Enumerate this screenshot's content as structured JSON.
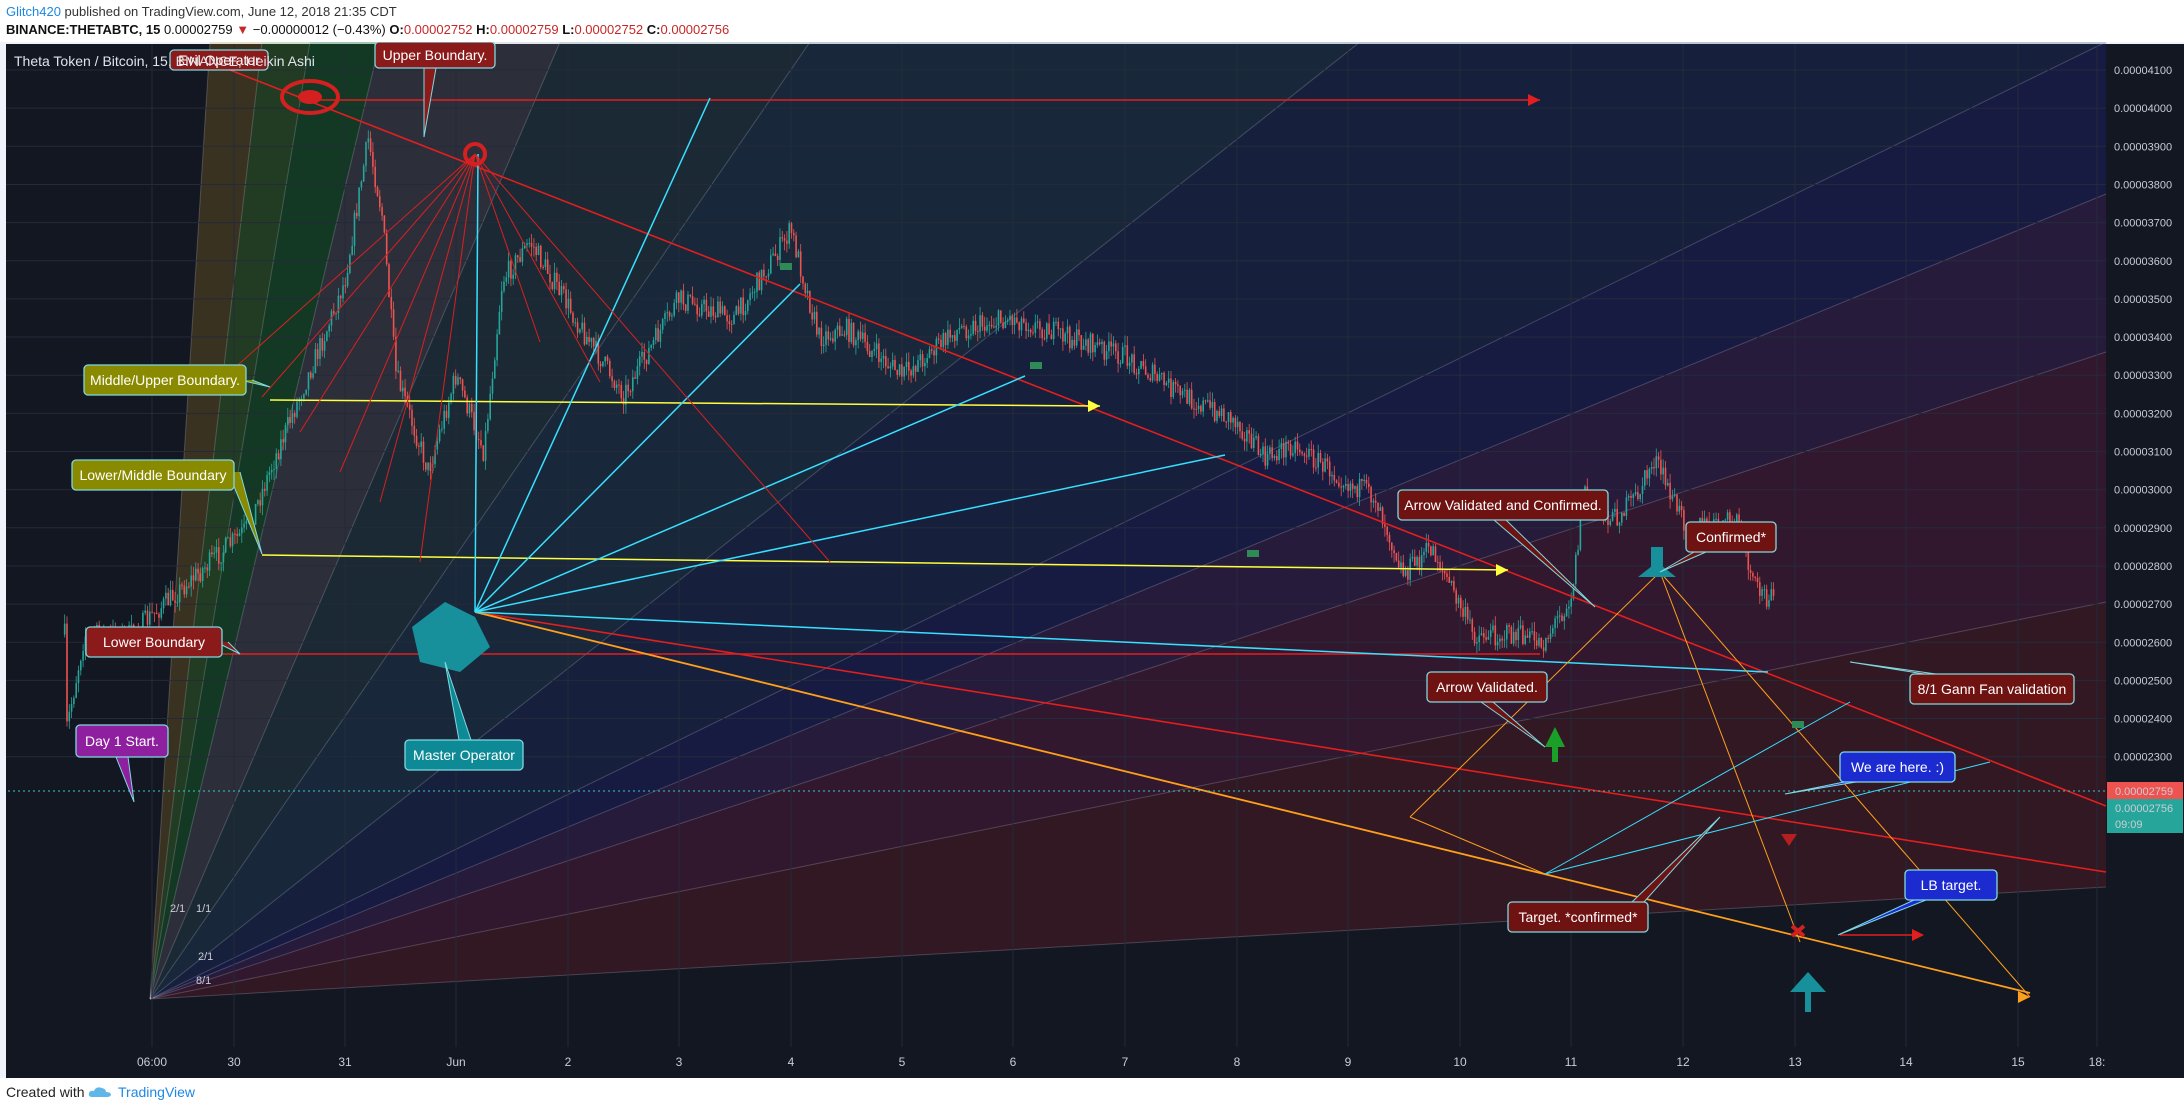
{
  "header": {
    "author": "Glitch420",
    "published": "published on TradingView.com, June 12, 2018 21:35 CDT",
    "symbol": "BINANCE:THETABTC, 15",
    "last": "0.00002759",
    "change_arrow": "▼",
    "change": "−0.00000012 (−0.43%)",
    "o_label": "O:",
    "o_value": "0.00002752",
    "h_label": "H:",
    "h_value": "0.00002759",
    "l_label": "L:",
    "l_value": "0.00002752",
    "c_label": "C:",
    "c_value": "0.00002756"
  },
  "chart_data": {
    "type": "candlestick",
    "title": "Theta Token / Bitcoin, 15, BINANCE, Heikin Ashi",
    "xlabel": "",
    "ylabel": "",
    "ylim": [
      2.25e-05,
      4.18e-05
    ],
    "yticks": [
      "0.00004100",
      "0.00004000",
      "0.00003900",
      "0.00003800",
      "0.00003700",
      "0.00003600",
      "0.00003500",
      "0.00003400",
      "0.00003300",
      "0.00003200",
      "0.00003100",
      "0.00003000",
      "0.00002900",
      "0.00002800",
      "0.00002700",
      "0.00002600",
      "0.00002500",
      "0.00002400",
      "0.00002300"
    ],
    "xticks": [
      "06:00",
      "30",
      "31",
      "Jun",
      "2",
      "3",
      "4",
      "5",
      "6",
      "7",
      "8",
      "9",
      "10",
      "11",
      "12",
      "13",
      "14",
      "15",
      "18:"
    ],
    "price_badges": {
      "last": "0.00002759",
      "close": "0.00002756",
      "timer": "09:09"
    },
    "price_path": [
      [
        "05-29 05:45",
        2.62e-05
      ],
      [
        "05-29 06:00",
        2.36e-05
      ],
      [
        "05-29 10:00",
        2.62e-05
      ],
      [
        "05-29 20:00",
        2.62e-05
      ],
      [
        "05-30 03:00",
        2.9e-05
      ],
      [
        "05-30 10:00",
        3.12e-05
      ],
      [
        "05-30 20:00",
        3.42e-05
      ],
      [
        "05-31 00:00",
        3.55e-05
      ],
      [
        "05-31 05:00",
        3.92e-05
      ],
      [
        "05-31 08:00",
        3.72e-05
      ],
      [
        "05-31 11:00",
        3.3e-05
      ],
      [
        "05-31 18:00",
        3.05e-05
      ],
      [
        "06-01 00:00",
        3.3e-05
      ],
      [
        "06-01 06:00",
        3.1e-05
      ],
      [
        "06-01 10:00",
        3.55e-05
      ],
      [
        "06-01 16:00",
        3.65e-05
      ],
      [
        "06-02 04:00",
        3.4e-05
      ],
      [
        "06-02 12:00",
        3.25e-05
      ],
      [
        "06-03 00:00",
        3.5e-05
      ],
      [
        "06-03 12:00",
        3.45e-05
      ],
      [
        "06-04 00:00",
        3.68e-05
      ],
      [
        "06-04 06:00",
        3.4e-05
      ],
      [
        "06-04 12:00",
        3.42e-05
      ],
      [
        "06-05 00:00",
        3.3e-05
      ],
      [
        "06-05 12:00",
        3.42e-05
      ],
      [
        "06-06 00:00",
        3.45e-05
      ],
      [
        "06-06 12:00",
        3.4e-05
      ],
      [
        "06-07 00:00",
        3.35e-05
      ],
      [
        "06-07 12:00",
        3.25e-05
      ],
      [
        "06-08 00:00",
        3.18e-05
      ],
      [
        "06-08 06:00",
        3.08e-05
      ],
      [
        "06-08 12:00",
        3.12e-05
      ],
      [
        "06-09 00:00",
        3.02e-05
      ],
      [
        "06-09 06:00",
        2.98e-05
      ],
      [
        "06-09 12:00",
        2.78e-05
      ],
      [
        "06-09 18:00",
        2.85e-05
      ],
      [
        "06-10 03:00",
        2.62e-05
      ],
      [
        "06-10 12:00",
        2.62e-05
      ],
      [
        "06-10 18:00",
        2.6e-05
      ],
      [
        "06-11 00:00",
        2.72e-05
      ],
      [
        "06-11 03:00",
        3e-05
      ],
      [
        "06-11 09:00",
        2.92e-05
      ],
      [
        "06-11 14:00",
        2.98e-05
      ],
      [
        "06-11 18:00",
        3.08e-05
      ],
      [
        "06-12 00:00",
        2.92e-05
      ],
      [
        "06-12 06:00",
        2.9e-05
      ],
      [
        "06-12 12:00",
        2.92e-05
      ],
      [
        "06-12 15:00",
        2.75e-05
      ],
      [
        "06-12 18:00",
        2.72e-05
      ],
      [
        "06-12 20:00",
        2.76e-05
      ]
    ]
  },
  "annotations": {
    "callouts": [
      {
        "text": "Evil Operator",
        "color": "#8b1a1a"
      },
      {
        "text": "Upper Boundary.",
        "color": "#8b1a1a"
      },
      {
        "text": "Middle/Upper Boundary.",
        "color": "#8a8a00"
      },
      {
        "text": "Lower/Middle Boundary",
        "color": "#8a8a00"
      },
      {
        "text": "Lower Boundary",
        "color": "#8b1a1a"
      },
      {
        "text": "Day 1 Start.",
        "color": "#8e1f9e"
      },
      {
        "text": "Master Operator",
        "color": "#0e8a96"
      },
      {
        "text": "Arrow Validated and Confirmed.",
        "color": "#6e1212"
      },
      {
        "text": "Confirmed*",
        "color": "#6e1212"
      },
      {
        "text": "Arrow Validated.",
        "color": "#6e1212"
      },
      {
        "text": "8/1 Gann Fan validation",
        "color": "#6e1212"
      },
      {
        "text": "We are here. :)",
        "color": "#1c2bd0"
      },
      {
        "text": "LB target.",
        "color": "#1c2bd0"
      },
      {
        "text": "Target. *confirmed*",
        "color": "#6e1212"
      }
    ],
    "fan_labels": [
      "2/1",
      "1/1",
      "2/1",
      "8/1"
    ]
  },
  "footer": {
    "created_with": "Created with",
    "brand": "TradingView"
  },
  "colors": {
    "chart_bg": "#131722",
    "up": "#26a69a",
    "down": "#ef5350",
    "red_line": "#e31e1e",
    "cyan_line": "#38e0ff",
    "yellow_line": "#ffff40",
    "orange_line": "#ff9f1c"
  }
}
